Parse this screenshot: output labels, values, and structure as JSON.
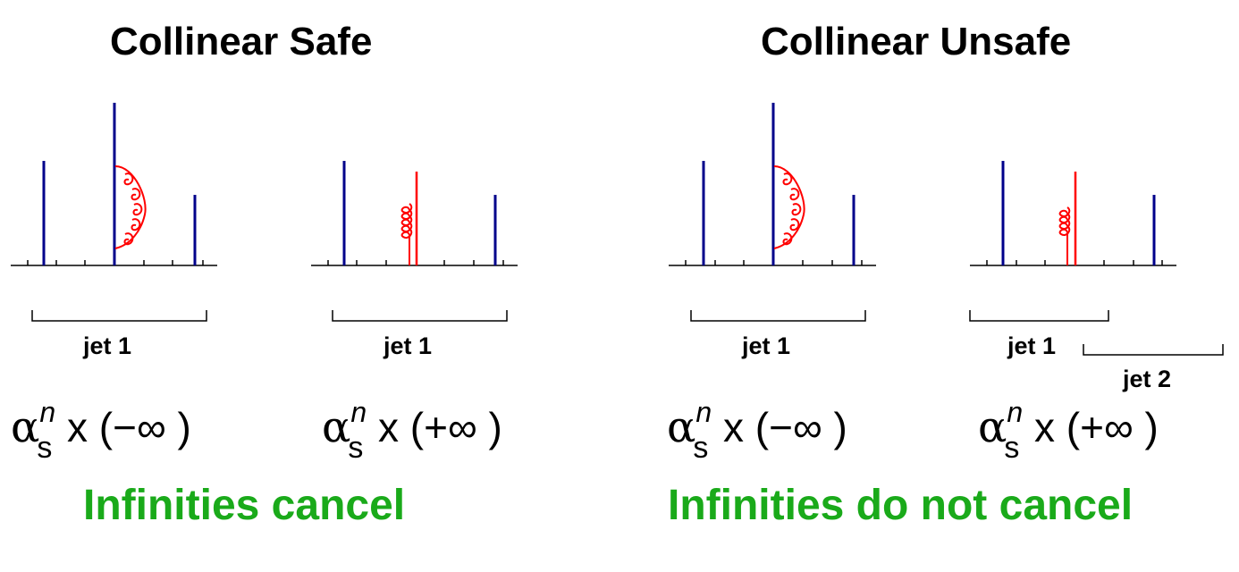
{
  "titles": {
    "left": "Collinear Safe",
    "right": "Collinear Unsafe"
  },
  "jet_labels": {
    "panel1": "jet 1",
    "panel2": "jet 1",
    "panel3": "jet 1",
    "panel4_jet1": "jet 1",
    "panel4_jet2": "jet 2"
  },
  "formulas": {
    "panel1": {
      "alpha": "α",
      "sub": "s",
      "sup": "n",
      "rest": " x (−∞ )"
    },
    "panel2": {
      "alpha": "α",
      "sub": "s",
      "sup": "n",
      "rest": " x (+∞ )"
    },
    "panel3": {
      "alpha": "α",
      "sub": "s",
      "sup": "n",
      "rest": " x (−∞ )"
    },
    "panel4": {
      "alpha": "α",
      "sub": "s",
      "sup": "n",
      "rest": " x (+∞ )"
    }
  },
  "results": {
    "left": "Infinities cancel",
    "right": "Infinities do not cancel"
  },
  "colors": {
    "particle": "#00008b",
    "gluon": "#ff0000",
    "result_text": "#1aaa1a",
    "axis": "#000000"
  }
}
